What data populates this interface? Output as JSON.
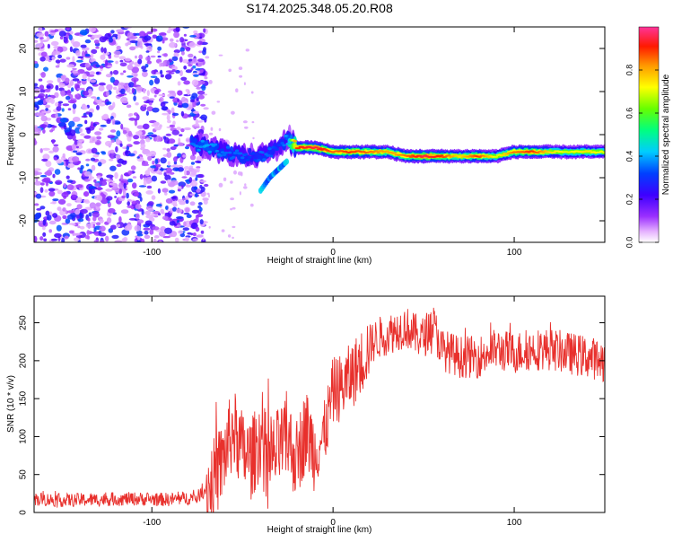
{
  "title": "S174.2025.348.05.20.R08",
  "chart_data": [
    {
      "type": "heatmap",
      "title": "S174.2025.348.05.20.R08",
      "xlabel": "Height of straight line (km)",
      "ylabel": "Frequency (Hz)",
      "xlim": [
        -165,
        150
      ],
      "ylim": [
        -25,
        25
      ],
      "xticks": [
        -100,
        0,
        100
      ],
      "xtick_labels": [
        "-100",
        "0",
        "100"
      ],
      "yticks": [
        -20,
        -10,
        0,
        10,
        20
      ],
      "ytick_labels": [
        "-20",
        "-10",
        "0",
        "10",
        "20"
      ],
      "colorbar": {
        "label": "Normalized spectral amplitude",
        "range": [
          0,
          1
        ],
        "ticks": [
          0.0,
          0.2,
          0.4,
          0.6,
          0.8
        ],
        "tick_labels": [
          "0.0",
          "0.2",
          "0.4",
          "0.6",
          "0.8"
        ]
      },
      "signal_track": {
        "x": [
          -78,
          -70,
          -60,
          -50,
          -45,
          -40,
          -35,
          -30,
          -25,
          -20,
          -10,
          0,
          10,
          20,
          30,
          40,
          50,
          60,
          70,
          80,
          90,
          100,
          110,
          120,
          130,
          140,
          150
        ],
        "frequency": [
          -2,
          -3,
          -4,
          -5,
          -5,
          -5,
          -4,
          -3,
          -1,
          -3,
          -3,
          -4,
          -4,
          -4,
          -4,
          -5,
          -5,
          -5,
          -5,
          -5,
          -5,
          -4,
          -4,
          -4,
          -4,
          -4,
          -4
        ],
        "amplitude": [
          0.35,
          0.4,
          0.35,
          0.35,
          0.3,
          0.35,
          0.35,
          0.3,
          0.4,
          0.9,
          0.95,
          0.85,
          0.9,
          0.85,
          0.8,
          0.85,
          0.95,
          0.9,
          0.75,
          0.9,
          0.7,
          0.85,
          0.9,
          0.75,
          0.7,
          0.75,
          0.7
        ]
      },
      "branch": {
        "x": [
          -40,
          -35,
          -30,
          -25
        ],
        "frequency": [
          -13,
          -10,
          -8,
          -6
        ]
      },
      "noise_region": {
        "x_range": [
          -165,
          -70
        ],
        "frequency_range": [
          -25,
          25
        ],
        "amplitude": [
          0.05,
          0.35
        ]
      }
    },
    {
      "type": "line",
      "title": "",
      "xlabel": "Height of straight line (km)",
      "ylabel": "SNR (10 * v/v)",
      "xlim": [
        -165,
        150
      ],
      "ylim": [
        0,
        285
      ],
      "xticks": [
        -100,
        0,
        100
      ],
      "xtick_labels": [
        "-100",
        "0",
        "100"
      ],
      "yticks": [
        0,
        50,
        100,
        150,
        200,
        250
      ],
      "ytick_labels": [
        "0",
        "50",
        "100",
        "150",
        "200",
        "250"
      ],
      "color": "#e8302c",
      "series": [
        {
          "name": "SNR",
          "x": [
            -165,
            -150,
            -130,
            -110,
            -90,
            -75,
            -68,
            -62,
            -58,
            -55,
            -50,
            -45,
            -40,
            -35,
            -30,
            -25,
            -20,
            -15,
            -10,
            -5,
            0,
            5,
            10,
            15,
            20,
            25,
            30,
            35,
            40,
            45,
            50,
            55,
            60,
            70,
            80,
            90,
            100,
            110,
            120,
            130,
            140,
            150
          ],
          "values": [
            18,
            16,
            17,
            18,
            17,
            20,
            35,
            60,
            90,
            110,
            80,
            70,
            100,
            65,
            85,
            95,
            70,
            110,
            80,
            100,
            160,
            165,
            180,
            195,
            220,
            230,
            235,
            240,
            245,
            235,
            230,
            250,
            215,
            205,
            205,
            215,
            210,
            215,
            215,
            210,
            205,
            200
          ]
        }
      ]
    }
  ]
}
